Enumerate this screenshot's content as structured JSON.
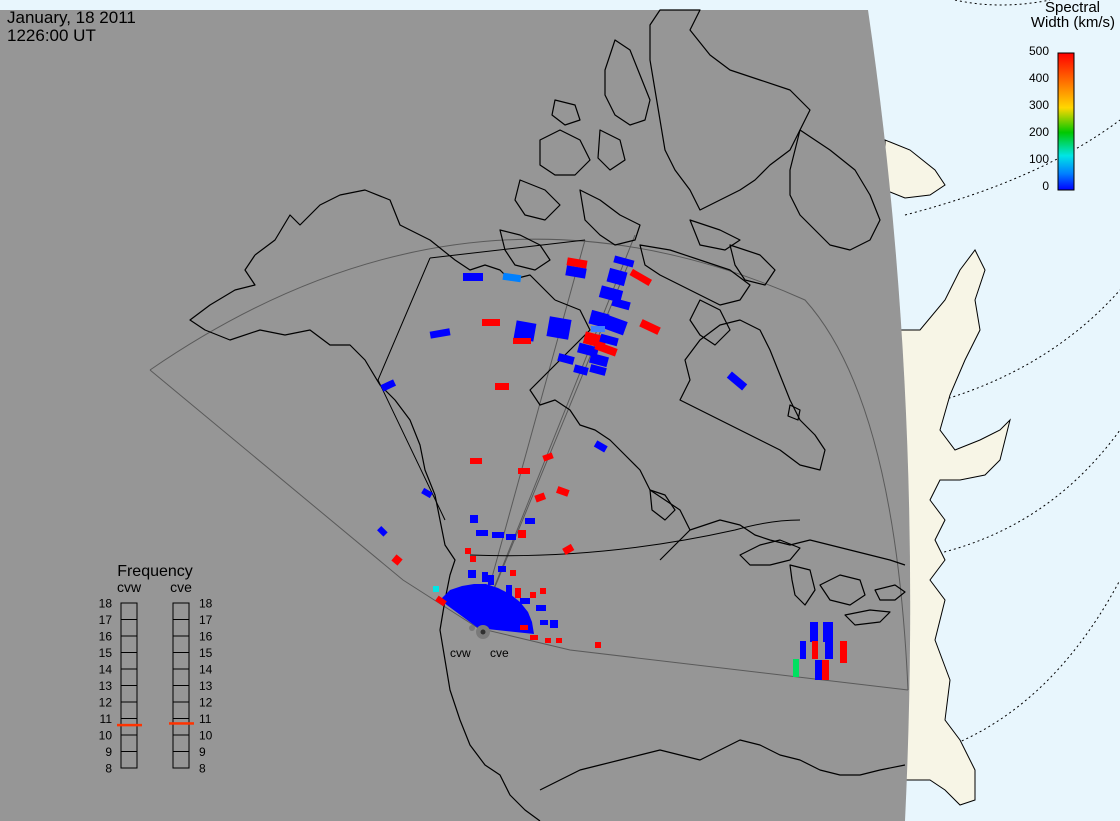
{
  "header": {
    "date": "January, 18 2011",
    "time": "1226:00 UT"
  },
  "colorbar": {
    "title_line1": "Spectral",
    "title_line2": "Width (km/s)",
    "ticks": [
      "500",
      "400",
      "300",
      "200",
      "100",
      "0"
    ],
    "min": 0,
    "max": 500,
    "colors": [
      "#ff0000",
      "#ff7f00",
      "#ffd700",
      "#00c800",
      "#00e5e5",
      "#0000ff"
    ]
  },
  "frequency_panel": {
    "title": "Frequency",
    "radars": [
      {
        "name": "cvw",
        "selected_mhz": 10.6
      },
      {
        "name": "cve",
        "selected_mhz": 10.7
      }
    ],
    "scale": [
      "18",
      "17",
      "16",
      "15",
      "14",
      "13",
      "12",
      "11",
      "10",
      "9",
      "8"
    ],
    "marker_color": "#ff3300"
  },
  "radar_sites": [
    {
      "name": "cvw"
    },
    {
      "name": "cve"
    }
  ],
  "colors": {
    "night_side": "#969696",
    "sea": "#e8f6fd",
    "day_land": "#f7f5e6",
    "coast": "#000000",
    "fov": "#555555",
    "scatter_low": "#0000ff",
    "scatter_high": "#ff0000",
    "scatter_mid": "#00e5e5"
  }
}
